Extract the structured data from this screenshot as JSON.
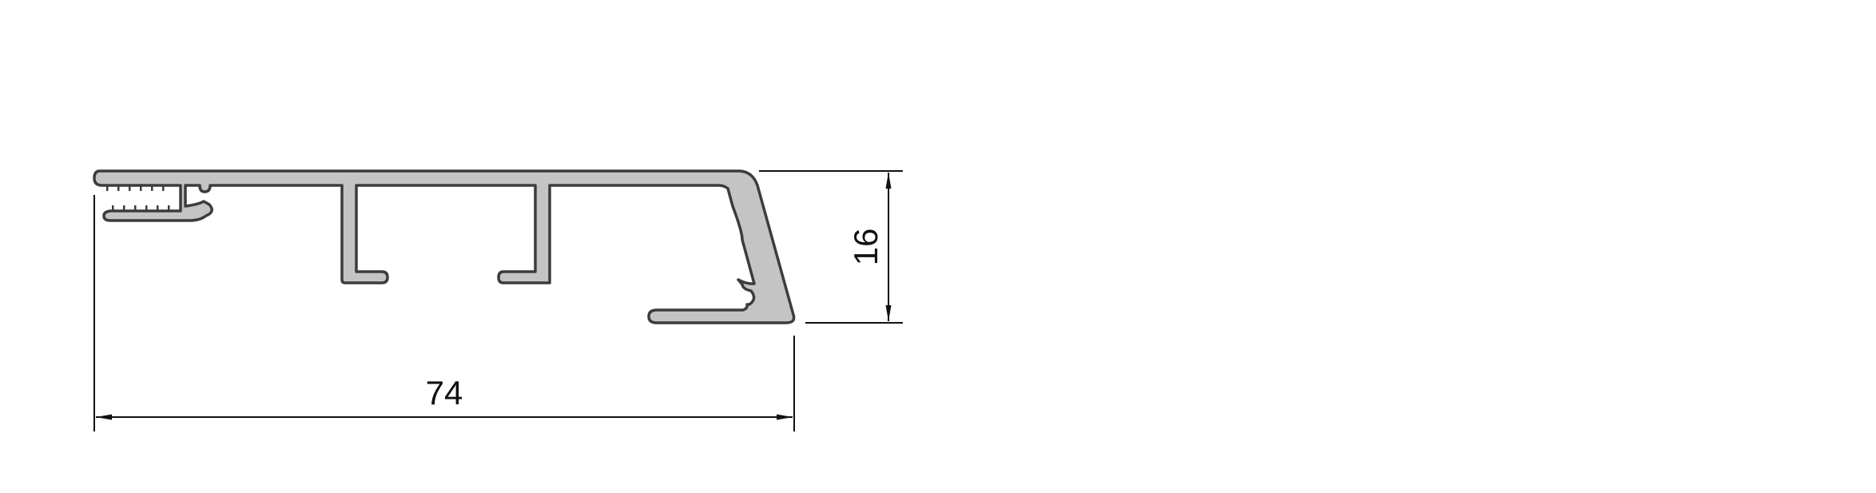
{
  "drawing": {
    "type": "aluminium profile cross-section",
    "dimensions": {
      "width": {
        "value": "74"
      },
      "height": {
        "value": "16"
      }
    },
    "colors": {
      "profile_fill": "#c4c4c4",
      "profile_outline": "#3c3c3c",
      "dimension_lines": "#111111",
      "background": "#ffffff"
    }
  }
}
